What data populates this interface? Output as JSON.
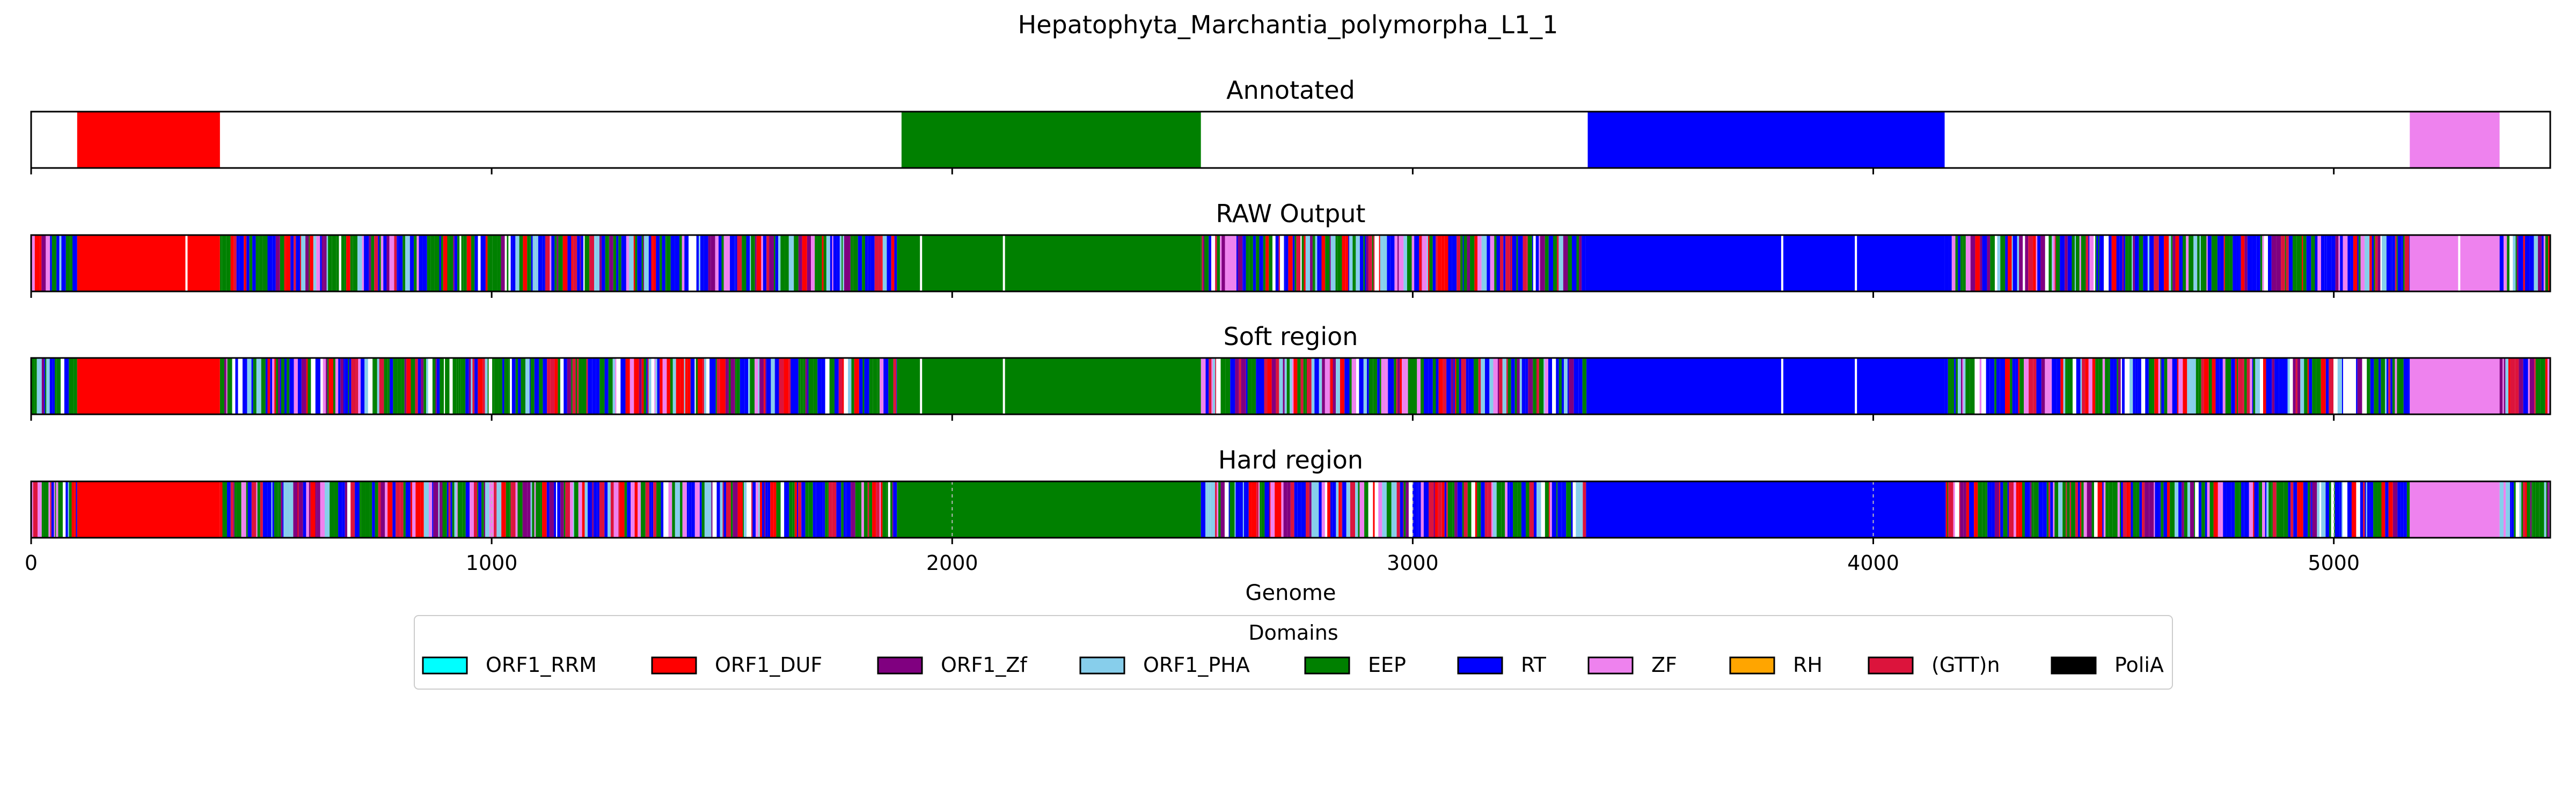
{
  "title": "Hepatophyta_Marchantia_polymorpha_L1_1",
  "xlabel": "Genome",
  "legend_title": "Domains",
  "colors": {
    "ORF1_RRM": "#00FFFF",
    "ORF1_DUF": "#FF0000",
    "ORF1_Zf": "#800080",
    "ORF1_PHA": "#87CEEB",
    "EEP": "#008000",
    "RT": "#0000FF",
    "ZF": "#EE82EE",
    "RH": "#FFA500",
    "(GTT)n": "#DC143C",
    "PoliA": "#000000"
  },
  "chart_data": {
    "type": "bar",
    "orientation": "horizontal-track",
    "xlim": [
      0,
      5470
    ],
    "xticks": [
      0,
      1000,
      2000,
      3000,
      4000,
      5000
    ],
    "legend_placement": "bottom-center",
    "legend": [
      "ORF1_RRM",
      "ORF1_DUF",
      "ORF1_Zf",
      "ORF1_PHA",
      "EEP",
      "RT",
      "ZF",
      "RH",
      "(GTT)n",
      "PoliA"
    ],
    "tracks": [
      {
        "title": "Annotated",
        "segments": [
          {
            "domain": "ORF1_DUF",
            "start": 100,
            "end": 410
          },
          {
            "domain": "EEP",
            "start": 1890,
            "end": 2540
          },
          {
            "domain": "RT",
            "start": 3380,
            "end": 4155
          },
          {
            "domain": "ZF",
            "start": 5165,
            "end": 5360
          }
        ]
      },
      {
        "title": "RAW Output",
        "segments": [
          {
            "domain": "ORF1_DUF",
            "start": 100,
            "end": 410
          },
          {
            "domain": "EEP",
            "start": 1880,
            "end": 2540
          },
          {
            "domain": "RT",
            "start": 3380,
            "end": 4155
          },
          {
            "domain": "ZF",
            "start": 5165,
            "end": 5360
          }
        ],
        "noise": [
          [
            0,
            100
          ],
          [
            410,
            1880
          ],
          [
            2540,
            3380
          ],
          [
            4155,
            5165
          ],
          [
            5360,
            5470
          ]
        ],
        "gaps": [
          335,
          1930,
          2110,
          3800,
          3960,
          5270
        ]
      },
      {
        "title": "Soft region",
        "segments": [
          {
            "domain": "ORF1_DUF",
            "start": 100,
            "end": 410
          },
          {
            "domain": "EEP",
            "start": 1880,
            "end": 2540
          },
          {
            "domain": "RT",
            "start": 3380,
            "end": 4155
          },
          {
            "domain": "ZF",
            "start": 5165,
            "end": 5360
          }
        ],
        "noise": [
          [
            0,
            100
          ],
          [
            410,
            1880
          ],
          [
            2540,
            3380
          ],
          [
            4155,
            5165
          ],
          [
            5360,
            5470
          ]
        ],
        "gaps": [
          1930,
          2110,
          3800,
          3960
        ]
      },
      {
        "title": "Hard region",
        "segments": [
          {
            "domain": "ORF1_DUF",
            "start": 100,
            "end": 410
          },
          {
            "domain": "EEP",
            "start": 1880,
            "end": 2540
          },
          {
            "domain": "RT",
            "start": 3380,
            "end": 4155
          },
          {
            "domain": "ZF",
            "start": 5165,
            "end": 5360
          }
        ],
        "noise": [
          [
            0,
            100
          ],
          [
            410,
            1880
          ],
          [
            2540,
            3380
          ],
          [
            4155,
            5165
          ],
          [
            5360,
            5470
          ]
        ],
        "gaps": []
      }
    ]
  }
}
